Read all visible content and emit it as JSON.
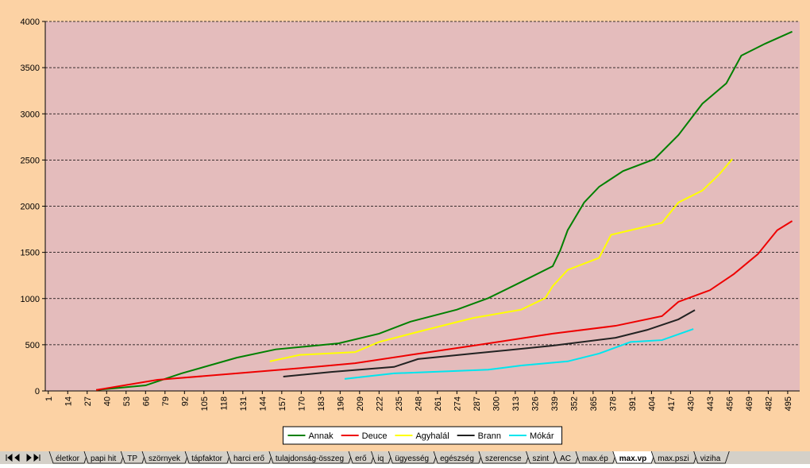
{
  "chart_data": {
    "type": "line",
    "xlim": [
      -1,
      503
    ],
    "xticks": [
      1,
      14,
      27,
      40,
      53,
      66,
      79,
      92,
      105,
      118,
      131,
      144,
      157,
      170,
      183,
      196,
      209,
      222,
      235,
      248,
      261,
      274,
      287,
      300,
      313,
      326,
      339,
      352,
      365,
      378,
      391,
      404,
      417,
      430,
      443,
      456,
      469,
      482,
      495
    ],
    "ylim": [
      0,
      4000
    ],
    "yticks": [
      0,
      500,
      1000,
      1500,
      2000,
      2500,
      3000,
      3500,
      4000
    ],
    "grid": true,
    "legend": "bottom",
    "series": [
      {
        "name": "Annak",
        "color": "#008000",
        "x": [
          33,
          66,
          90,
          127,
          153,
          195,
          222,
          243,
          274,
          295,
          317,
          338,
          343,
          348,
          359,
          369,
          385,
          406,
          422,
          438,
          454,
          464,
          480,
          498
        ],
        "values": [
          10,
          60,
          190,
          360,
          450,
          515,
          620,
          750,
          880,
          1005,
          1180,
          1350,
          1520,
          1740,
          2040,
          2210,
          2380,
          2510,
          2770,
          3110,
          3330,
          3630,
          3760,
          3890
        ]
      },
      {
        "name": "Deuce",
        "color": "#ee0000",
        "x": [
          33,
          74,
          127,
          179,
          206,
          243,
          285,
          338,
          380,
          411,
          422,
          443,
          459,
          475,
          488,
          498
        ],
        "values": [
          10,
          120,
          190,
          260,
          300,
          390,
          490,
          620,
          705,
          810,
          965,
          1090,
          1265,
          1480,
          1740,
          1840
        ]
      },
      {
        "name": "Agyhalál",
        "color": "#ffff00",
        "x": [
          149,
          169,
          206,
          222,
          253,
          285,
          317,
          333,
          338,
          348,
          369,
          377,
          390,
          411,
          422,
          438,
          449,
          458
        ],
        "values": [
          320,
          390,
          420,
          530,
          660,
          790,
          880,
          1005,
          1135,
          1310,
          1440,
          1690,
          1740,
          1820,
          2040,
          2170,
          2340,
          2510
        ]
      },
      {
        "name": "Brann",
        "color": "#222222",
        "x": [
          158,
          190,
          232,
          248,
          285,
          338,
          380,
          401,
          422,
          433
        ],
        "values": [
          155,
          205,
          260,
          345,
          405,
          490,
          575,
          660,
          775,
          875
        ]
      },
      {
        "name": "Mókár",
        "color": "#00e5ee",
        "x": [
          199,
          232,
          295,
          317,
          348,
          369,
          390,
          411,
          432
        ],
        "values": [
          130,
          190,
          230,
          275,
          320,
          405,
          530,
          550,
          670
        ]
      }
    ]
  },
  "sheet_tabs": [
    "életkor",
    "papi hit",
    "TP",
    "szörnyek",
    "tápfaktor",
    "harci erő",
    "tulajdonság-összeg",
    "erő",
    "iq",
    "ügyesség",
    "egészség",
    "szerencse",
    "szint",
    "AC",
    "max.ép",
    "max.vp",
    "max.pszi",
    "viziha"
  ],
  "active_tab": 15
}
